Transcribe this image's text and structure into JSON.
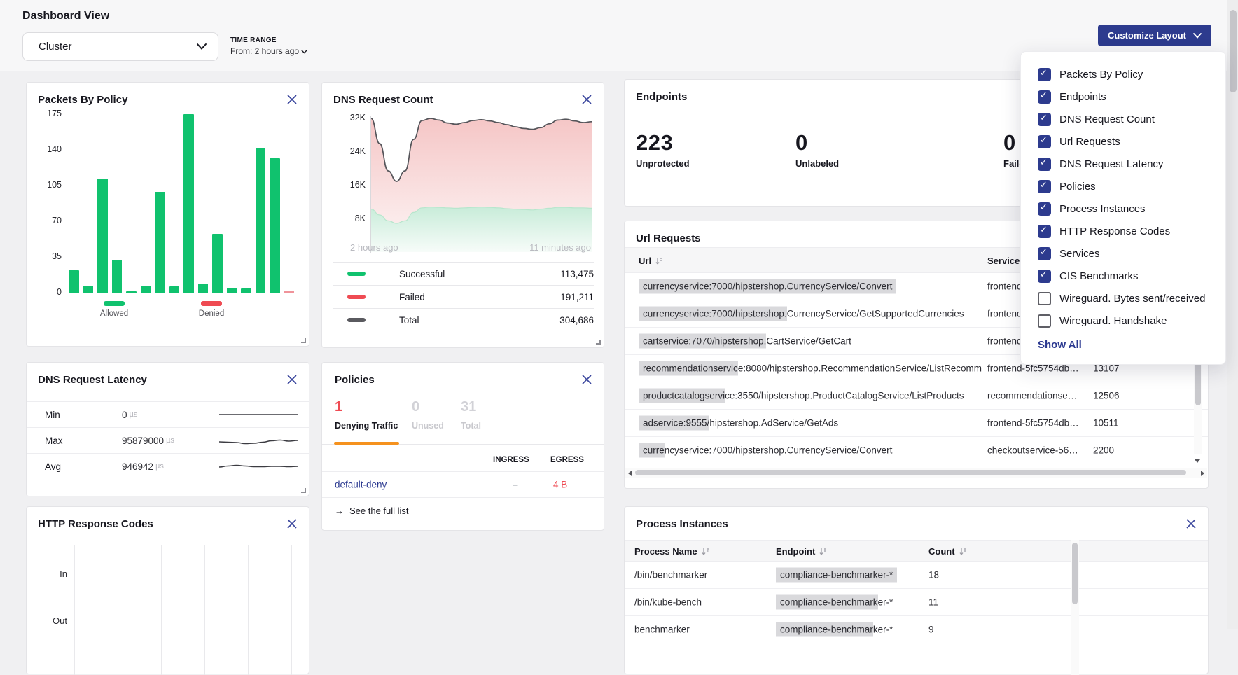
{
  "colors": {
    "navy": "#2d3b8e",
    "link": "#2b3990",
    "green": "#10c26e",
    "red": "#ef4b53",
    "orange": "#f5921e",
    "highlight": "#d9d9dc"
  },
  "header": {
    "title": "Dashboard View",
    "view_selector_value": "Cluster",
    "time_range_label": "TIME RANGE",
    "time_range_value": "From: 2 hours ago",
    "customize_button": "Customize Layout"
  },
  "customize_menu": {
    "items": [
      {
        "label": "Packets By Policy",
        "checked": true
      },
      {
        "label": "Endpoints",
        "checked": true
      },
      {
        "label": "DNS Request Count",
        "checked": true
      },
      {
        "label": "Url Requests",
        "checked": true
      },
      {
        "label": "DNS Request Latency",
        "checked": true
      },
      {
        "label": "Policies",
        "checked": true
      },
      {
        "label": "Process Instances",
        "checked": true
      },
      {
        "label": "HTTP Response Codes",
        "checked": true
      },
      {
        "label": "Services",
        "checked": true
      },
      {
        "label": "CIS Benchmarks",
        "checked": true
      },
      {
        "label": "Wireguard. Bytes sent/received",
        "checked": false
      },
      {
        "label": "Wireguard. Handshake",
        "checked": false
      }
    ],
    "show_all": "Show All"
  },
  "cards": {
    "endpoints": {
      "title": "Endpoints",
      "stats": [
        {
          "value": "223",
          "label": "Unprotected"
        },
        {
          "value": "0",
          "label": "Unlabeled"
        },
        {
          "value": "0",
          "label": "Failed"
        }
      ]
    },
    "url_requests": {
      "title": "Url Requests",
      "columns": [
        "Url",
        "Service"
      ],
      "rows": [
        {
          "url": "currencyservice:7000/hipstershop.CurrencyService/Convert",
          "hl": 57,
          "service": "frontend-5fc5754db…",
          "count": ""
        },
        {
          "url": "currencyservice:7000/hipstershop.CurrencyService/GetSupportedCurrencies",
          "hl": 33,
          "service": "frontend-5fc5754db…",
          "count": ""
        },
        {
          "url": "cartservice:7070/hipstershop.CartService/GetCart",
          "hl": 29,
          "service": "frontend-5fc5754db…",
          "count": ""
        },
        {
          "url": "recommendationservice:8080/hipstershop.RecommendationService/ListRecomm",
          "hl": 20,
          "service": "frontend-5fc5754db…",
          "count": "13107"
        },
        {
          "url": "productcatalogservice:3550/hipstershop.ProductCatalogService/ListProducts",
          "hl": 19,
          "service": "recommendationse…",
          "count": "12506"
        },
        {
          "url": "adservice:9555/hipstershop.AdService/GetAds",
          "hl": 15,
          "service": "frontend-5fc5754db…",
          "count": "10511"
        },
        {
          "url": "currencyservice:7000/hipstershop.CurrencyService/Convert",
          "hl": 5,
          "service": "checkoutservice-56…",
          "count": "2200"
        }
      ]
    },
    "dns_request_latency": {
      "title": "DNS Request Latency",
      "rows": [
        {
          "label": "Min",
          "value": "0",
          "unit": "µs"
        },
        {
          "label": "Max",
          "value": "95879000",
          "unit": "µs"
        },
        {
          "label": "Avg",
          "value": "946942",
          "unit": "µs"
        }
      ]
    },
    "policies": {
      "title": "Policies",
      "tabs": [
        {
          "value": "1",
          "label": "Denying Traffic",
          "active": true
        },
        {
          "value": "0",
          "label": "Unused",
          "active": false
        },
        {
          "value": "31",
          "label": "Total",
          "active": false
        }
      ],
      "columns": [
        "INGRESS",
        "EGRESS"
      ],
      "rows": [
        {
          "name": "default-deny",
          "ingress": "–",
          "egress": "4 B"
        }
      ],
      "footer_link": "See the full list"
    },
    "process_instances": {
      "title": "Process Instances",
      "columns": [
        "Process Name",
        "Endpoint",
        "Count"
      ],
      "rows": [
        {
          "name": "/bin/benchmarker",
          "endpoint": "compliance-benchmarker-*",
          "hl": 24,
          "count": "18"
        },
        {
          "name": "/bin/kube-bench",
          "endpoint": "compliance-benchmarker-*",
          "hl": 20,
          "count": "11"
        },
        {
          "name": "benchmarker",
          "endpoint": "compliance-benchmarker-*",
          "hl": 19,
          "count": "9"
        }
      ]
    }
  },
  "chart_data": [
    {
      "id": "packets_by_policy",
      "type": "bar",
      "title": "Packets By Policy",
      "ylim": [
        0,
        175
      ],
      "yticks": [
        0,
        35,
        70,
        105,
        140,
        175
      ],
      "grid": false,
      "categories": [
        "Allowed",
        "Denied"
      ],
      "series": [
        {
          "name": "Allowed",
          "color": "#10c26e",
          "values": [
            22,
            7,
            112,
            32,
            1,
            7,
            99,
            6,
            175,
            9,
            58,
            5,
            4,
            142,
            132
          ]
        },
        {
          "name": "Denied",
          "color": "#f0939a",
          "values": [
            2
          ]
        }
      ]
    },
    {
      "id": "dns_request_count",
      "type": "area",
      "title": "DNS Request Count",
      "ylim_k": [
        0,
        32.5
      ],
      "yticks": [
        "8K",
        "16K",
        "24K",
        "32K"
      ],
      "xlabels": [
        "2 hours ago",
        "11 minutes ago"
      ],
      "legend_position": "bottom",
      "series": [
        {
          "name": "Total",
          "stroke": "#55555a",
          "fill_top": "#f5c6c6",
          "fill_bottom": "#fdf6f6",
          "values_k": [
            32,
            26,
            19.5,
            17,
            19.5,
            27,
            31.5,
            32,
            31.6,
            30.9,
            30.6,
            31,
            31.5,
            31.7,
            31.4,
            31,
            30.5,
            30,
            29.6,
            29.4,
            29.8,
            30.7,
            31.6,
            31.8,
            31.4,
            31,
            31.2
          ]
        },
        {
          "name": "Successful",
          "stroke": "#b7e6cd",
          "fill_top": "#c8ecd9",
          "fill_bottom": "#f7fcf9",
          "values_k": [
            10.4,
            9,
            7.6,
            7,
            7.6,
            9.6,
            10.7,
            10.9,
            10.8,
            10.7,
            10.6,
            10.7,
            10.8,
            10.9,
            10.8,
            10.7,
            10.5,
            10.4,
            10.3,
            10.2,
            10.4,
            10.6,
            10.8,
            10.8,
            10.7,
            10.7,
            10.6
          ]
        }
      ],
      "legend": [
        {
          "label": "Successful",
          "value": "113,475",
          "color": "#10c26e"
        },
        {
          "label": "Failed",
          "value": "191,211",
          "color": "#ef4b53"
        },
        {
          "label": "Total",
          "value": "304,686",
          "color": "#5a5a5f"
        }
      ]
    },
    {
      "id": "dns_request_latency_sparklines",
      "type": "line",
      "rows": [
        {
          "label": "Min",
          "points": [
            11,
            11,
            11,
            11,
            11,
            11,
            11,
            11,
            11,
            11
          ]
        },
        {
          "label": "Max",
          "points": [
            13,
            13.5,
            14,
            15.5,
            15,
            13.5,
            11.5,
            10.5,
            12,
            11
          ]
        },
        {
          "label": "Avg",
          "points": [
            12,
            10.5,
            9.5,
            10.5,
            11.5,
            11.5,
            11,
            11,
            11.5,
            11
          ]
        }
      ]
    },
    {
      "id": "http_response_codes",
      "type": "bar",
      "title": "HTTP Response Codes",
      "row_labels": [
        "In",
        "Out"
      ],
      "series": [],
      "note": "chart area empty in viewport, vertical gridlines only"
    }
  ]
}
